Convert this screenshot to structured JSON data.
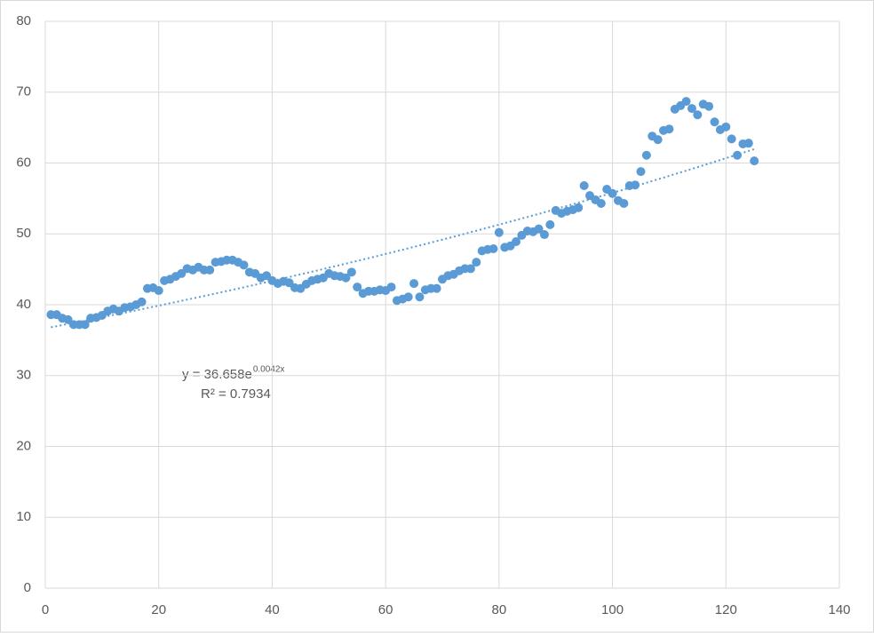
{
  "chart_data": {
    "type": "scatter",
    "color": "#5b9bd5",
    "grid": true,
    "xlim": [
      0,
      140
    ],
    "xticks": [
      0,
      20,
      40,
      60,
      80,
      100,
      120,
      140
    ],
    "ylim": [
      0,
      80
    ],
    "yticks": [
      0,
      10,
      20,
      30,
      40,
      50,
      60,
      70,
      80
    ],
    "series": [
      {
        "color": "#5b9bd5",
        "x": [
          1,
          2,
          3,
          4,
          5,
          6,
          7,
          8,
          9,
          10,
          11,
          12,
          13,
          14,
          15,
          16,
          17,
          18,
          19,
          20,
          21,
          22,
          23,
          24,
          25,
          26,
          27,
          28,
          29,
          30,
          31,
          32,
          33,
          34,
          35,
          36,
          37,
          38,
          39,
          40,
          41,
          42,
          43,
          44,
          45,
          46,
          47,
          48,
          49,
          50,
          51,
          52,
          53,
          54,
          55,
          56,
          57,
          58,
          59,
          60,
          61,
          62,
          63,
          64,
          65,
          66,
          67,
          68,
          69,
          70,
          71,
          72,
          73,
          74,
          75,
          76,
          77,
          78,
          79,
          80,
          81,
          82,
          83,
          84,
          85,
          86,
          87,
          88,
          89,
          90,
          91,
          92,
          93,
          94,
          95,
          96,
          97,
          98,
          99,
          100,
          101,
          102,
          103,
          104,
          105,
          106,
          107,
          108,
          109,
          110,
          111,
          112,
          113,
          114,
          115,
          116,
          117,
          118,
          119,
          120,
          121,
          122,
          123,
          124,
          125
        ],
        "values": [
          38.6,
          38.6,
          38.1,
          37.9,
          37.2,
          37.2,
          37.2,
          38.1,
          38.2,
          38.5,
          39.1,
          39.4,
          39.1,
          39.6,
          39.7,
          40.0,
          40.4,
          42.3,
          42.4,
          42.0,
          43.4,
          43.6,
          44.0,
          44.4,
          45.1,
          44.9,
          45.3,
          44.9,
          44.9,
          46.0,
          46.1,
          46.3,
          46.3,
          46.0,
          45.6,
          44.6,
          44.4,
          43.8,
          44.1,
          43.4,
          43.0,
          43.3,
          43.1,
          42.4,
          42.3,
          42.9,
          43.4,
          43.6,
          43.8,
          44.4,
          44.1,
          44.0,
          43.8,
          44.6,
          42.5,
          41.6,
          41.9,
          41.9,
          42.1,
          42.0,
          42.5,
          40.6,
          40.8,
          41.1,
          43.0,
          41.1,
          42.1,
          42.3,
          42.3,
          43.6,
          44.1,
          44.3,
          44.8,
          45.1,
          45.1,
          46.0,
          47.6,
          47.8,
          47.9,
          50.2,
          48.1,
          48.3,
          48.9,
          49.8,
          50.4,
          50.3,
          50.7,
          49.9,
          51.3,
          53.3,
          52.9,
          53.2,
          53.4,
          53.7,
          56.8,
          55.4,
          54.8,
          54.3,
          56.3,
          55.7,
          54.7,
          54.3,
          56.8,
          56.9,
          58.8,
          61.1,
          63.8,
          63.3,
          64.6,
          64.8,
          67.6,
          68.1,
          68.7,
          67.7,
          66.8,
          68.3,
          68.0,
          65.8,
          64.7,
          65.1,
          63.4,
          61.1,
          62.7,
          62.8,
          60.3
        ]
      }
    ],
    "trendline": {
      "kind": "exponential",
      "coefficient": 36.658,
      "rate": 0.0042,
      "equation": "y = 36.658e",
      "exponent": "0.0042x",
      "r_squared": "R² = 0.7934"
    }
  }
}
